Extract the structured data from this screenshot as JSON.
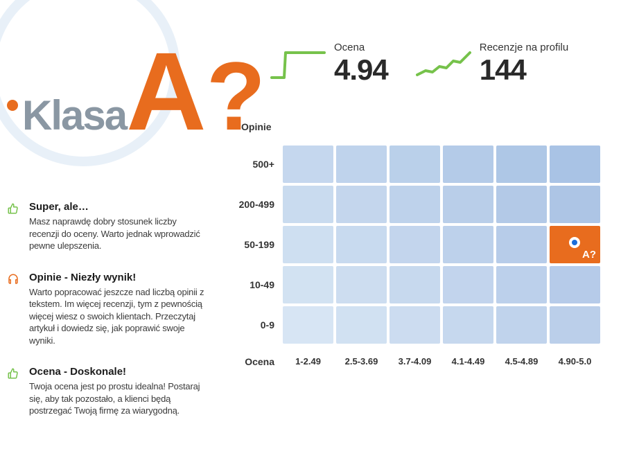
{
  "header": {
    "prefix": "Klasa",
    "grade": "A",
    "suffix": "?",
    "color_grade": "#e86c1e",
    "color_prefix": "#8a97a3"
  },
  "stats": {
    "rating": {
      "label": "Ocena",
      "value": "4.94",
      "spark_color": "#76c24b"
    },
    "reviews": {
      "label": "Recenzje na profilu",
      "value": "144",
      "spark_color": "#76c24b"
    }
  },
  "heatmap": {
    "y_axis_title": "Opinie",
    "x_axis_title": "Ocena",
    "y_labels": [
      "500+",
      "200-499",
      "50-199",
      "10-49",
      "0-9"
    ],
    "x_labels": [
      "1-2.49",
      "2.5-3.69",
      "3.7-4.09",
      "4.1-4.49",
      "4.5-4.89",
      "4.90-5.0"
    ],
    "cell_colors": [
      [
        "#c5d7ee",
        "#bfd3ec",
        "#bad0ea",
        "#b4cbe8",
        "#aec7e6",
        "#a9c3e5"
      ],
      [
        "#c9dbef",
        "#c4d6ed",
        "#bed2eb",
        "#b9cee9",
        "#b3c9e7",
        "#adc5e5"
      ],
      [
        "#cedff1",
        "#c8daef",
        "#c3d5ed",
        "#bdd1eb",
        "#b7cce9",
        "#e86c1e"
      ],
      [
        "#d2e2f2",
        "#cdddf0",
        "#c7d9ee",
        "#c2d4ed",
        "#bcd0eb",
        "#b6cbe9"
      ],
      [
        "#d7e5f4",
        "#d1e1f2",
        "#ccdcf0",
        "#c6d8ee",
        "#c0d3ec",
        "#bbcfea"
      ]
    ],
    "active": {
      "row": 2,
      "col": 5,
      "marker_label": "A?",
      "marker_bg": "#e86c1e"
    }
  },
  "tips": [
    {
      "icon": "thumb-up",
      "icon_color": "#76c24b",
      "title": "Super, ale…",
      "desc": "Masz naprawdę dobry stosunek liczby recenzji do oceny. Warto jednak wprowadzić pewne ulepszenia."
    },
    {
      "icon": "headset",
      "icon_color": "#e86c1e",
      "title": "Opinie - Niezły wynik!",
      "desc": "Warto popracować jeszcze nad liczbą opinii z tekstem. Im więcej recenzji, tym z pewnością więcej wiesz o swoich klientach. Przeczytaj artykuł i dowiedz się, jak poprawić swoje wyniki."
    },
    {
      "icon": "thumb-up",
      "icon_color": "#76c24b",
      "title": "Ocena - Doskonale!",
      "desc": "Twoja ocena jest po prostu idealna! Postaraj się, aby tak pozostało, a klienci będą postrzegać Twoją firmę za wiarygodną."
    }
  ]
}
